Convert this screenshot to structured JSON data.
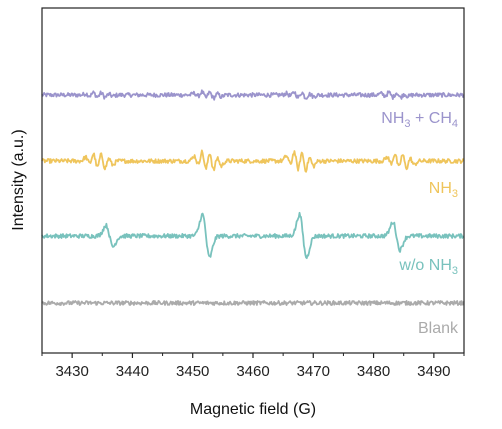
{
  "chart_data": {
    "type": "line",
    "title": "",
    "xlabel": "Magnetic field (G)",
    "ylabel": "Intensity (a.u.)",
    "xlim": [
      3425,
      3495
    ],
    "x_ticks": [
      3430,
      3440,
      3450,
      3460,
      3470,
      3480,
      3490
    ],
    "x_tick_labels": [
      "3430",
      "3440",
      "3450",
      "3460",
      "3470",
      "3480",
      "3490"
    ],
    "y_ticks_shown": false,
    "grid": false,
    "legend": "none; series labelled directly on the right above each trace",
    "series": [
      {
        "name": "NH3 + CH4",
        "label_main": "NH",
        "label_sub": "3",
        "label_rest": " + CH",
        "label_sub2": "4",
        "color": "#9B94CC",
        "baseline_offset": 4,
        "signals": [
          {
            "center": 3434.5,
            "pattern": "quartet",
            "amplitude": 0.16
          },
          {
            "center": 3452.5,
            "pattern": "quartet",
            "amplitude": 0.22
          },
          {
            "center": 3467.8,
            "pattern": "quartet",
            "amplitude": 0.2
          },
          {
            "center": 3483.5,
            "pattern": "quartet",
            "amplitude": 0.18
          }
        ]
      },
      {
        "name": "NH3",
        "label_main": "NH",
        "label_sub": "3",
        "color": "#EFC55C",
        "baseline_offset": 3,
        "signals": [
          {
            "center": 3434.5,
            "pattern": "quartet",
            "amplitude": 0.5
          },
          {
            "center": 3452.5,
            "pattern": "quartet",
            "amplitude": 0.65
          },
          {
            "center": 3467.8,
            "pattern": "quartet",
            "amplitude": 0.65
          },
          {
            "center": 3484.5,
            "pattern": "quartet",
            "amplitude": 0.5
          }
        ]
      },
      {
        "name": "w/o NH3",
        "label_main": "w/o NH",
        "label_sub": "3",
        "color": "#79C2BD",
        "baseline_offset": 2,
        "signals": [
          {
            "center": 3436.2,
            "pattern": "single",
            "amplitude": 0.42
          },
          {
            "center": 3452.2,
            "pattern": "single",
            "amplitude": 0.85
          },
          {
            "center": 3468.3,
            "pattern": "single",
            "amplitude": 0.85
          },
          {
            "center": 3483.8,
            "pattern": "single",
            "amplitude": 0.55
          }
        ]
      },
      {
        "name": "Blank",
        "label_main": "Blank",
        "color": "#ABABAB",
        "baseline_offset": 1,
        "signals": []
      }
    ]
  }
}
